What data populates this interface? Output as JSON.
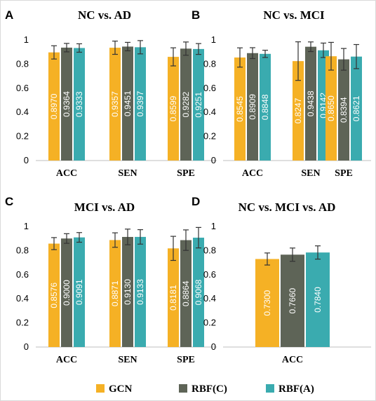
{
  "chart_data": [
    {
      "type": "bar",
      "panel": "A",
      "title": "NC vs. AD",
      "categories": [
        "ACC",
        "SEN",
        "SPE"
      ],
      "ylim": [
        0,
        1
      ],
      "yticks": [
        "0",
        "0.2",
        "0.4",
        "0.6",
        "0.8",
        "1"
      ],
      "grid": false,
      "series": [
        {
          "name": "GCN",
          "values": [
            0.897,
            0.9357,
            0.8599
          ],
          "labels": [
            "0.8970",
            "0.9357",
            "0.8599"
          ],
          "errors": [
            0.055,
            0.055,
            0.075
          ]
        },
        {
          "name": "RBF(C)",
          "values": [
            0.9364,
            0.9451,
            0.9282
          ],
          "labels": [
            "0.9364",
            "0.9451",
            "0.9282"
          ],
          "errors": [
            0.035,
            0.035,
            0.055
          ]
        },
        {
          "name": "RBF(A)",
          "values": [
            0.9333,
            0.9397,
            0.9251
          ],
          "labels": [
            "0.9333",
            "0.9397",
            "0.9251"
          ],
          "errors": [
            0.035,
            0.055,
            0.045
          ]
        }
      ]
    },
    {
      "type": "bar",
      "panel": "B",
      "title": "NC vs. MCI",
      "categories": [
        "ACC",
        "SEN",
        "SPE"
      ],
      "ylim": [
        0,
        1
      ],
      "yticks": [
        "0",
        "0.2",
        "0.4",
        "0.6",
        "0.8",
        "1"
      ],
      "grid": false,
      "series": [
        {
          "name": "GCN",
          "values": [
            0.8545,
            0.8247,
            0.865
          ],
          "labels": [
            "0.8545",
            "0.8247",
            "0.8650"
          ],
          "errors": [
            0.08,
            0.16,
            0.115
          ]
        },
        {
          "name": "RBF(C)",
          "values": [
            0.8909,
            0.9438,
            0.8394
          ],
          "labels": [
            "0.8909",
            "0.9438",
            "0.8394"
          ],
          "errors": [
            0.045,
            0.04,
            0.09
          ]
        },
        {
          "name": "RBF(A)",
          "values": [
            0.8848,
            0.9142,
            0.8621
          ],
          "labels": [
            "0.8848",
            "0.9142",
            "0.8621"
          ],
          "errors": [
            0.03,
            0.06,
            0.1
          ]
        }
      ]
    },
    {
      "type": "bar",
      "panel": "C",
      "title": "MCI vs. AD",
      "categories": [
        "ACC",
        "SEN",
        "SPE"
      ],
      "ylim": [
        0,
        1
      ],
      "yticks": [
        "0",
        "0.2",
        "0.4",
        "0.6",
        "0.8",
        "1"
      ],
      "grid": false,
      "series": [
        {
          "name": "GCN",
          "values": [
            0.8576,
            0.8871,
            0.8181
          ],
          "labels": [
            "0.8576",
            "0.8871",
            "0.8181"
          ],
          "errors": [
            0.05,
            0.06,
            0.1
          ]
        },
        {
          "name": "RBF(C)",
          "values": [
            0.9,
            0.913,
            0.8864
          ],
          "labels": [
            "0.9000",
            "0.9130",
            "0.8864"
          ],
          "errors": [
            0.04,
            0.065,
            0.085
          ]
        },
        {
          "name": "RBF(A)",
          "values": [
            0.9091,
            0.9133,
            0.9068
          ],
          "labels": [
            "0.9091",
            "0.9133",
            "0.9068"
          ],
          "errors": [
            0.04,
            0.06,
            0.085
          ]
        }
      ]
    },
    {
      "type": "bar",
      "panel": "D",
      "title": "NC vs. MCI vs. AD",
      "categories": [
        "ACC"
      ],
      "ylim": [
        0,
        1
      ],
      "yticks": [
        "0",
        "0.2",
        "0.4",
        "0.6",
        "0.8",
        "1"
      ],
      "grid": false,
      "series": [
        {
          "name": "GCN",
          "values": [
            0.73
          ],
          "labels": [
            "0.7300"
          ],
          "errors": [
            0.05
          ]
        },
        {
          "name": "RBF(C)",
          "values": [
            0.766
          ],
          "labels": [
            "0.7660"
          ],
          "errors": [
            0.055
          ]
        },
        {
          "name": "RBF(A)",
          "values": [
            0.784
          ],
          "labels": [
            "0.7840"
          ],
          "errors": [
            0.055
          ]
        }
      ]
    }
  ],
  "legend": {
    "placement": "bottom",
    "items": [
      {
        "label": "GCN",
        "color": "#F5B125"
      },
      {
        "label": "RBF(C)",
        "color": "#5E6457"
      },
      {
        "label": "RBF(A)",
        "color": "#3AABAF"
      }
    ]
  },
  "colors": {
    "GCN": "#F5B125",
    "RBF(C)": "#5E6457",
    "RBF(A)": "#3AABAF",
    "axis": "#bfbfbf",
    "errorbar": "#333333"
  }
}
